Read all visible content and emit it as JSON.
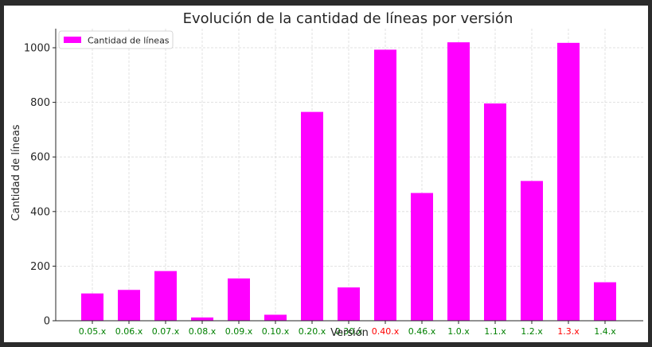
{
  "chart_data": {
    "type": "bar",
    "title": "Evolución de la cantidad de líneas por versión",
    "xlabel": "Versión",
    "ylabel": "Cantidad de líneas",
    "ylim": [
      0,
      1070
    ],
    "yticks": [
      0,
      200,
      400,
      600,
      800,
      1000
    ],
    "grid": true,
    "legend_placement": "top-left",
    "categories": [
      "0.05.x",
      "0.06.x",
      "0.07.x",
      "0.08.x",
      "0.09.x",
      "0.10.x",
      "0.20.x",
      "0.30.x",
      "0.40.x",
      "0.46.x",
      "1.0.x",
      "1.1.x",
      "1.2.x",
      "1.3.x",
      "1.4.x"
    ],
    "category_label_colors": [
      "#008000",
      "#008000",
      "#008000",
      "#008000",
      "#008000",
      "#008000",
      "#008000",
      "#008000",
      "#ff0000",
      "#008000",
      "#008000",
      "#008000",
      "#008000",
      "#ff0000",
      "#008000"
    ],
    "series": [
      {
        "name": "Cantidad de líneas",
        "color": "#ff00ff",
        "values": [
          100,
          113,
          182,
          12,
          155,
          22,
          765,
          122,
          993,
          468,
          1020,
          796,
          512,
          1018,
          141
        ]
      }
    ]
  }
}
